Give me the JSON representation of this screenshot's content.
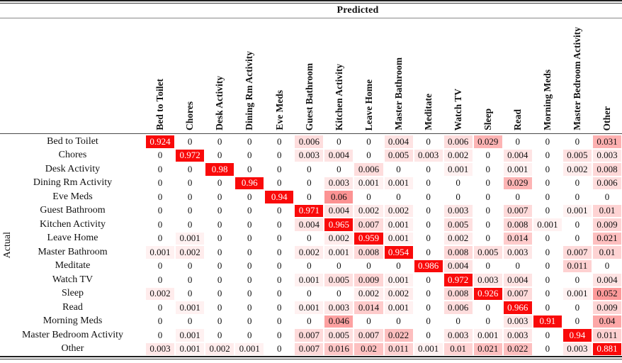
{
  "figure": {
    "predicted_axis_label": "Predicted",
    "actual_axis_label": "Actual"
  },
  "colors": {
    "heat_red": "#f90a0a",
    "diagonal_text": "#ffffff",
    "rule_dark": "#1f1f1f",
    "rule_gray": "#8a8a8a"
  },
  "chart_data": {
    "type": "heatmap",
    "xlabel": "Predicted",
    "ylabel": "Actual",
    "value_range": [
      0,
      1
    ],
    "colormap": "white-to-red",
    "categories": [
      "Bed to Toilet",
      "Chores",
      "Desk Activity",
      "Dining Rm Activity",
      "Eve Meds",
      "Guest Bathroom",
      "Kitchen Activity",
      "Leave Home",
      "Master Bathroom",
      "Meditate",
      "Watch TV",
      "Sleep",
      "Read",
      "Morning Meds",
      "Master Bedroom Activity",
      "Other"
    ],
    "matrix": [
      [
        0.924,
        0,
        0,
        0,
        0,
        0.006,
        0,
        0,
        0.004,
        0,
        0.006,
        0.029,
        0,
        0,
        0,
        0.031
      ],
      [
        0,
        0.972,
        0,
        0,
        0,
        0.003,
        0.004,
        0,
        0.005,
        0.003,
        0.002,
        0,
        0.004,
        0,
        0.005,
        0.003
      ],
      [
        0,
        0,
        0.98,
        0,
        0,
        0,
        0,
        0.006,
        0,
        0,
        0.001,
        0,
        0.001,
        0,
        0.002,
        0.008
      ],
      [
        0,
        0,
        0,
        0.96,
        0,
        0,
        0.003,
        0.001,
        0.001,
        0,
        0,
        0,
        0.029,
        0,
        0,
        0.006
      ],
      [
        0,
        0,
        0,
        0,
        0.94,
        0,
        0.06,
        0,
        0,
        0,
        0,
        0,
        0,
        0,
        0,
        0
      ],
      [
        0,
        0,
        0,
        0,
        0,
        0.971,
        0.004,
        0.002,
        0.002,
        0,
        0.003,
        0,
        0.007,
        0,
        0.001,
        0.01
      ],
      [
        0,
        0,
        0,
        0,
        0,
        0.004,
        0.965,
        0.007,
        0.001,
        0,
        0.005,
        0,
        0.008,
        0.001,
        0,
        0.009
      ],
      [
        0,
        0.001,
        0,
        0,
        0,
        0,
        0.002,
        0.959,
        0.001,
        0,
        0.002,
        0,
        0.014,
        0,
        0,
        0.021
      ],
      [
        0.001,
        0.002,
        0,
        0,
        0,
        0.002,
        0.001,
        0.008,
        0.954,
        0,
        0.008,
        0.005,
        0.003,
        0,
        0.007,
        0.01
      ],
      [
        0,
        0,
        0,
        0,
        0,
        0,
        0,
        0,
        0,
        0.986,
        0.004,
        0,
        0,
        0,
        0.011,
        0
      ],
      [
        0,
        0,
        0,
        0,
        0,
        0.001,
        0.005,
        0.009,
        0.001,
        0,
        0.972,
        0.003,
        0.004,
        0,
        0,
        0.004
      ],
      [
        0.002,
        0,
        0,
        0,
        0,
        0,
        0,
        0.002,
        0.002,
        0,
        0.008,
        0.926,
        0.007,
        0,
        0.001,
        0.052
      ],
      [
        0,
        0.001,
        0,
        0,
        0,
        0.001,
        0.003,
        0.014,
        0.001,
        0,
        0.006,
        0,
        0.966,
        0,
        0,
        0.009
      ],
      [
        0,
        0,
        0,
        0,
        0,
        0,
        0.046,
        0,
        0,
        0,
        0,
        0,
        0.003,
        0.91,
        0,
        0.04
      ],
      [
        0,
        0.001,
        0,
        0,
        0,
        0.007,
        0.005,
        0.007,
        0.022,
        0,
        0.003,
        0.001,
        0.003,
        0,
        0.94,
        0.011
      ],
      [
        0.003,
        0.001,
        0.002,
        0.001,
        0,
        0.007,
        0.016,
        0.02,
        0.011,
        0.001,
        0.01,
        0.021,
        0.022,
        0,
        0.003,
        0.881
      ]
    ]
  }
}
